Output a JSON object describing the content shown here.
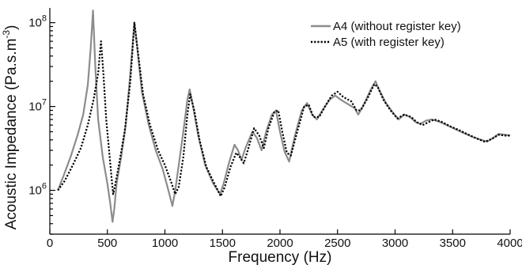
{
  "chart_data": {
    "type": "line",
    "xlabel": "Frequency (Hz)",
    "ylabel_main": "Acoustic Impedance (Pa.s.m",
    "ylabel_sup": "-3",
    "ylabel_tail": ")",
    "xlim": [
      0,
      4000
    ],
    "ylim": [
      300000,
      150000000
    ],
    "yscale": "log",
    "grid": false,
    "legend_position": "top-right",
    "x_ticks": [
      0,
      500,
      1000,
      1500,
      2000,
      2500,
      3000,
      3500,
      4000
    ],
    "x_tick_labels": [
      "0",
      "500",
      "1000",
      "1500",
      "2000",
      "2500",
      "3000",
      "3500",
      "4000"
    ],
    "y_ticks": [
      {
        "value": 1000000,
        "base": "10",
        "exp": "6"
      },
      {
        "value": 10000000,
        "base": "10",
        "exp": "7"
      },
      {
        "value": 100000000,
        "base": "10",
        "exp": "8"
      }
    ],
    "series": [
      {
        "name": "A4 (without register key)",
        "style": "solid",
        "color": "#8c8c8c",
        "points": [
          [
            70,
            1000000
          ],
          [
            120,
            1500000
          ],
          [
            180,
            2500000
          ],
          [
            240,
            4500000
          ],
          [
            290,
            8000000
          ],
          [
            330,
            18000000
          ],
          [
            355,
            50000000
          ],
          [
            375,
            140000000
          ],
          [
            395,
            30000000
          ],
          [
            420,
            7000000
          ],
          [
            460,
            2500000
          ],
          [
            500,
            1200000
          ],
          [
            525,
            700000
          ],
          [
            545,
            420000
          ],
          [
            560,
            600000
          ],
          [
            580,
            1200000
          ],
          [
            620,
            2500000
          ],
          [
            660,
            6000000
          ],
          [
            700,
            25000000
          ],
          [
            735,
            100000000
          ],
          [
            760,
            50000000
          ],
          [
            800,
            15000000
          ],
          [
            860,
            6000000
          ],
          [
            920,
            3000000
          ],
          [
            980,
            1800000
          ],
          [
            1030,
            1000000
          ],
          [
            1065,
            650000
          ],
          [
            1090,
            1000000
          ],
          [
            1120,
            2000000
          ],
          [
            1160,
            5000000
          ],
          [
            1195,
            12000000
          ],
          [
            1215,
            16000000
          ],
          [
            1245,
            10000000
          ],
          [
            1290,
            4500000
          ],
          [
            1350,
            2000000
          ],
          [
            1420,
            1200000
          ],
          [
            1480,
            900000
          ],
          [
            1510,
            1200000
          ],
          [
            1560,
            2200000
          ],
          [
            1605,
            3500000
          ],
          [
            1635,
            3000000
          ],
          [
            1665,
            2300000
          ],
          [
            1700,
            3200000
          ],
          [
            1760,
            5000000
          ],
          [
            1800,
            4200000
          ],
          [
            1840,
            3000000
          ],
          [
            1880,
            5000000
          ],
          [
            1930,
            8000000
          ],
          [
            1965,
            9000000
          ],
          [
            2000,
            5000000
          ],
          [
            2040,
            2900000
          ],
          [
            2080,
            2200000
          ],
          [
            2130,
            4500000
          ],
          [
            2190,
            9000000
          ],
          [
            2235,
            11000000
          ],
          [
            2280,
            8000000
          ],
          [
            2320,
            7000000
          ],
          [
            2380,
            9500000
          ],
          [
            2430,
            12000000
          ],
          [
            2480,
            13500000
          ],
          [
            2530,
            12000000
          ],
          [
            2600,
            10500000
          ],
          [
            2650,
            9500000
          ],
          [
            2680,
            8000000
          ],
          [
            2720,
            10000000
          ],
          [
            2790,
            16000000
          ],
          [
            2830,
            20000000
          ],
          [
            2860,
            16000000
          ],
          [
            2920,
            11000000
          ],
          [
            2980,
            8500000
          ],
          [
            3030,
            7000000
          ],
          [
            3080,
            8000000
          ],
          [
            3130,
            7500000
          ],
          [
            3180,
            6500000
          ],
          [
            3220,
            6200000
          ],
          [
            3270,
            6800000
          ],
          [
            3320,
            7000000
          ],
          [
            3380,
            6600000
          ],
          [
            3450,
            6000000
          ],
          [
            3530,
            5300000
          ],
          [
            3600,
            4800000
          ],
          [
            3680,
            4300000
          ],
          [
            3750,
            4000000
          ],
          [
            3800,
            3800000
          ],
          [
            3850,
            4200000
          ],
          [
            3900,
            4700000
          ],
          [
            3960,
            4600000
          ],
          [
            4000,
            4500000
          ]
        ]
      },
      {
        "name": "A5 (with register key)",
        "style": "dotted",
        "color": "#000000",
        "points": [
          [
            70,
            1000000
          ],
          [
            130,
            1300000
          ],
          [
            200,
            2000000
          ],
          [
            270,
            3200000
          ],
          [
            330,
            6000000
          ],
          [
            380,
            12000000
          ],
          [
            420,
            25000000
          ],
          [
            445,
            60000000
          ],
          [
            465,
            25000000
          ],
          [
            490,
            7000000
          ],
          [
            515,
            3000000
          ],
          [
            535,
            1500000
          ],
          [
            550,
            900000
          ],
          [
            565,
            1100000
          ],
          [
            600,
            2000000
          ],
          [
            650,
            5000000
          ],
          [
            700,
            20000000
          ],
          [
            735,
            100000000
          ],
          [
            765,
            45000000
          ],
          [
            810,
            14000000
          ],
          [
            870,
            6000000
          ],
          [
            940,
            3000000
          ],
          [
            1000,
            2000000
          ],
          [
            1050,
            1300000
          ],
          [
            1090,
            900000
          ],
          [
            1120,
            1100000
          ],
          [
            1160,
            2500000
          ],
          [
            1195,
            8000000
          ],
          [
            1220,
            14000000
          ],
          [
            1255,
            9000000
          ],
          [
            1300,
            4000000
          ],
          [
            1360,
            1900000
          ],
          [
            1430,
            1200000
          ],
          [
            1485,
            850000
          ],
          [
            1520,
            1100000
          ],
          [
            1570,
            1900000
          ],
          [
            1620,
            2800000
          ],
          [
            1650,
            2500000
          ],
          [
            1685,
            2100000
          ],
          [
            1720,
            3000000
          ],
          [
            1775,
            5500000
          ],
          [
            1820,
            4500000
          ],
          [
            1860,
            3200000
          ],
          [
            1900,
            5500000
          ],
          [
            1950,
            8500000
          ],
          [
            1985,
            9000000
          ],
          [
            2020,
            5000000
          ],
          [
            2060,
            2800000
          ],
          [
            2095,
            2600000
          ],
          [
            2150,
            5000000
          ],
          [
            2210,
            10000000
          ],
          [
            2250,
            10500000
          ],
          [
            2290,
            7500000
          ],
          [
            2340,
            7500000
          ],
          [
            2400,
            10500000
          ],
          [
            2450,
            13500000
          ],
          [
            2500,
            15000000
          ],
          [
            2550,
            13000000
          ],
          [
            2620,
            11500000
          ],
          [
            2665,
            9000000
          ],
          [
            2700,
            9000000
          ],
          [
            2760,
            12500000
          ],
          [
            2820,
            18500000
          ],
          [
            2850,
            17000000
          ],
          [
            2900,
            12000000
          ],
          [
            2960,
            9000000
          ],
          [
            3020,
            7200000
          ],
          [
            3080,
            8000000
          ],
          [
            3140,
            7500000
          ],
          [
            3190,
            6500000
          ],
          [
            3240,
            6000000
          ],
          [
            3290,
            6500000
          ],
          [
            3340,
            7000000
          ],
          [
            3400,
            6600000
          ],
          [
            3480,
            5800000
          ],
          [
            3560,
            5200000
          ],
          [
            3640,
            4600000
          ],
          [
            3720,
            4100000
          ],
          [
            3780,
            3800000
          ],
          [
            3840,
            4100000
          ],
          [
            3900,
            4600000
          ],
          [
            3960,
            4500000
          ],
          [
            4000,
            4500000
          ]
        ]
      }
    ]
  }
}
